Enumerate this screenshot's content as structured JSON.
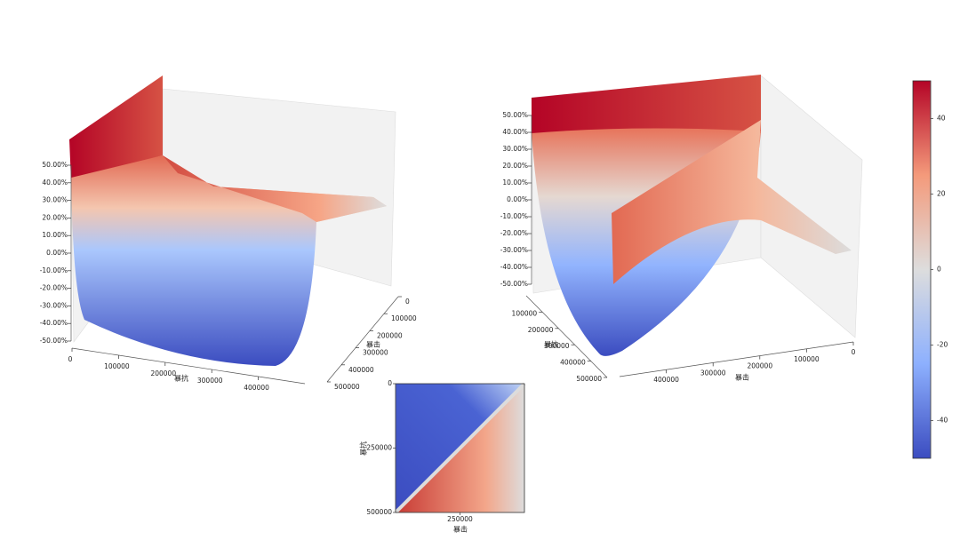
{
  "chart_data": [
    {
      "type": "surface3d",
      "xlabel": "暴抗",
      "ylabel": "暴击",
      "xlim": [
        0,
        500000
      ],
      "xticks": [
        0,
        100000,
        200000,
        300000,
        400000
      ],
      "ylim": [
        0,
        500000
      ],
      "yticks": [
        0,
        100000,
        200000,
        300000,
        400000,
        500000
      ],
      "zlim": [
        -50,
        50
      ],
      "zticks": [
        {
          "value": 50,
          "label": "50.00%"
        },
        {
          "value": 40,
          "label": "40.00%"
        },
        {
          "value": 30,
          "label": "30.00%"
        },
        {
          "value": 20,
          "label": "20.00%"
        },
        {
          "value": 10,
          "label": "10.00%"
        },
        {
          "value": 0,
          "label": "0.00%"
        },
        {
          "value": -10,
          "label": "-10.00%"
        },
        {
          "value": -20,
          "label": "-20.00%"
        },
        {
          "value": -30,
          "label": "-30.00%"
        },
        {
          "value": -40,
          "label": "-40.00%"
        },
        {
          "value": -50,
          "label": "-50.00%"
        }
      ],
      "colormap": "coolwarm"
    },
    {
      "type": "surface3d",
      "xlabel": "暴击",
      "ylabel": "暴抗",
      "xlim": [
        0,
        500000
      ],
      "xticks": [
        0,
        100000,
        200000,
        300000,
        400000
      ],
      "ylim": [
        0,
        500000
      ],
      "yticks": [
        100000,
        200000,
        300000,
        400000,
        500000
      ],
      "zlim": [
        -50,
        50
      ],
      "zticks": [
        {
          "value": 50,
          "label": "50.00%"
        },
        {
          "value": 40,
          "label": "40.00%"
        },
        {
          "value": 30,
          "label": "30.00%"
        },
        {
          "value": 20,
          "label": "20.00%"
        },
        {
          "value": 10,
          "label": "10.00%"
        },
        {
          "value": 0,
          "label": "0.00%"
        },
        {
          "value": -10,
          "label": "-10.00%"
        },
        {
          "value": -20,
          "label": "-20.00%"
        },
        {
          "value": -30,
          "label": "-30.00%"
        },
        {
          "value": -40,
          "label": "-40.00%"
        },
        {
          "value": -50,
          "label": "-50.00%"
        }
      ],
      "colormap": "coolwarm"
    },
    {
      "type": "heatmap",
      "xlabel": "暴击",
      "ylabel": "暴抗",
      "xlim": [
        0,
        500000
      ],
      "xticks": [
        250000
      ],
      "ylim": [
        0,
        500000
      ],
      "yticks": [
        0,
        250000,
        500000
      ],
      "colormap": "coolwarm"
    },
    {
      "type": "colorbar",
      "ylim": [
        -50,
        50
      ],
      "yticks": [
        40,
        20,
        0,
        -20,
        -40
      ],
      "colormap": "coolwarm"
    }
  ]
}
